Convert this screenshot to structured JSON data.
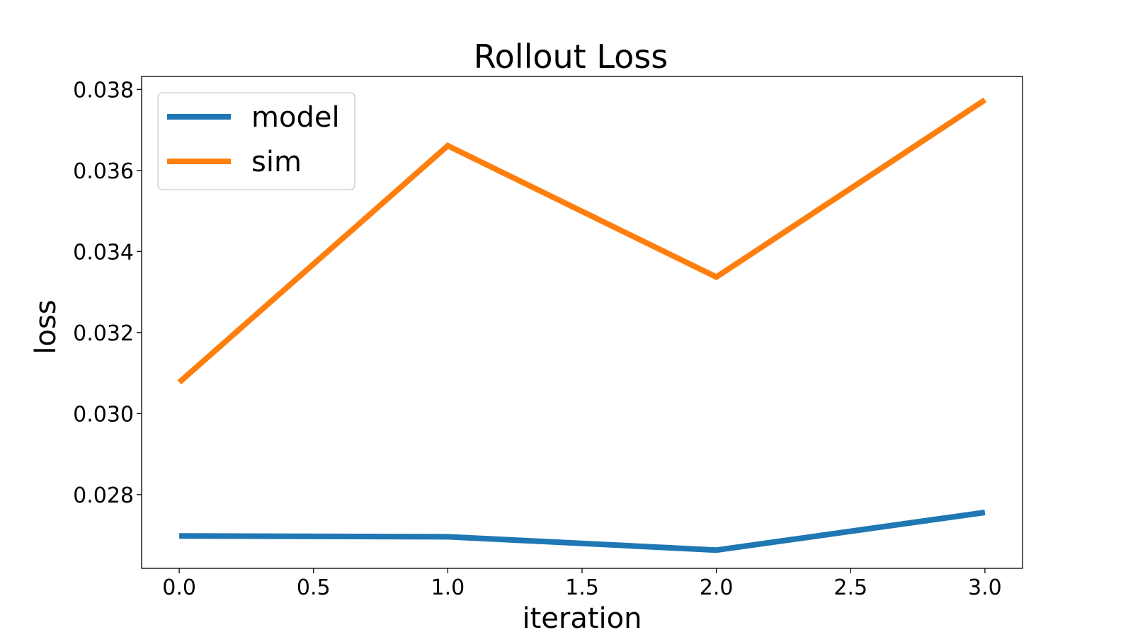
{
  "chart_data": {
    "type": "line",
    "title": "Rollout Loss",
    "xlabel": "iteration",
    "ylabel": "loss",
    "x": [
      0,
      1,
      2,
      3
    ],
    "xlim": [
      -0.14,
      3.14
    ],
    "ylim": [
      0.02618,
      0.03832
    ],
    "xticks": [
      0.0,
      0.5,
      1.0,
      1.5,
      2.0,
      2.5,
      3.0
    ],
    "xtick_labels": [
      "0.0",
      "0.5",
      "1.0",
      "1.5",
      "2.0",
      "2.5",
      "3.0"
    ],
    "yticks": [
      0.028,
      0.03,
      0.032,
      0.034,
      0.036,
      0.038
    ],
    "ytick_labels": [
      "0.028",
      "0.030",
      "0.032",
      "0.034",
      "0.036",
      "0.038"
    ],
    "grid": false,
    "legend_position": "top-left",
    "series": [
      {
        "name": "model",
        "color": "#1f77b4",
        "values": [
          0.02698,
          0.02696,
          0.02663,
          0.02756
        ]
      },
      {
        "name": "sim",
        "color": "#ff7f0e",
        "values": [
          0.03077,
          0.03661,
          0.03337,
          0.03774
        ]
      }
    ]
  }
}
